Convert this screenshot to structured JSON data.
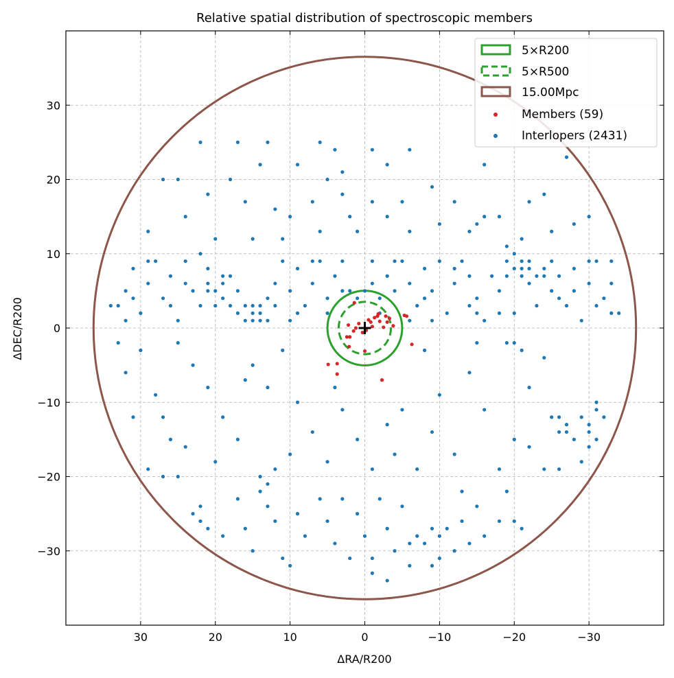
{
  "chart_data": {
    "type": "scatter",
    "title": "Relative spatial distribution of spectroscopic members",
    "xlabel": "ΔRA/R200",
    "ylabel": "ΔDEC/R200",
    "xlim": [
      40,
      -40
    ],
    "ylim": [
      -40,
      40
    ],
    "x_inverted": true,
    "grid": true,
    "x_ticks": [
      30,
      20,
      10,
      0,
      -10,
      -20,
      -30
    ],
    "x_tick_labels": [
      "30",
      "20",
      "10",
      "0",
      "−10",
      "−20",
      "−30"
    ],
    "y_ticks": [
      30,
      20,
      10,
      0,
      -10,
      -20,
      -30
    ],
    "y_tick_labels": [
      "30",
      "20",
      "10",
      "0",
      "−10",
      "−20",
      "−30"
    ],
    "legend_position": "top-right",
    "center_marker": "plus",
    "circles": [
      {
        "name": "5×R200",
        "radius": 5.0,
        "style": "solid",
        "color": "#2ca02c"
      },
      {
        "name": "5×R500",
        "radius": 3.5,
        "style": "dashed",
        "color": "#2ca02c"
      },
      {
        "name": "15.00Mpc",
        "radius": 36.3,
        "style": "solid",
        "color": "#8c564b"
      }
    ],
    "series": [
      {
        "name": "Members (59)",
        "color": "#d62728",
        "points": [
          [
            1.4,
            3.4
          ],
          [
            -1.7,
            1.6
          ],
          [
            -2.8,
            1.6
          ],
          [
            -5.6,
            1.6
          ],
          [
            -5.3,
            1.7
          ],
          [
            -0.8,
            0.8
          ],
          [
            1.2,
            0
          ],
          [
            2.2,
            0.4
          ],
          [
            0.3,
            -0.6
          ],
          [
            -2.5,
            0.1
          ],
          [
            -3.8,
            0.3
          ],
          [
            2.4,
            -1.2
          ],
          [
            2.0,
            -1.2
          ],
          [
            2.1,
            -2.5
          ],
          [
            0,
            -3.1
          ],
          [
            -6.3,
            -2.2
          ],
          [
            4.9,
            -4.9
          ],
          [
            3.7,
            -4.8
          ],
          [
            3.7,
            -6.2
          ],
          [
            -2.3,
            -7.0
          ],
          [
            -1.3,
            1.4
          ],
          [
            -3.3,
            1.3
          ],
          [
            -0.5,
            1.1
          ],
          [
            -2.0,
            0.9
          ],
          [
            -1.0,
            0.2
          ],
          [
            0.8,
            0.6
          ],
          [
            -0.2,
            -0.3
          ],
          [
            1.5,
            -0.4
          ],
          [
            -3.0,
            0.8
          ],
          [
            -1.8,
            1.9
          ]
        ]
      },
      {
        "name": "Interlopers (2431)",
        "color": "#1f77b4",
        "points": [
          [
            33,
            3
          ],
          [
            32,
            5
          ],
          [
            31,
            8
          ],
          [
            30,
            2
          ],
          [
            29,
            6
          ],
          [
            28,
            9
          ],
          [
            27,
            4
          ],
          [
            26,
            7
          ],
          [
            25,
            1
          ],
          [
            24,
            9
          ],
          [
            23,
            5
          ],
          [
            22,
            3
          ],
          [
            21,
            8
          ],
          [
            20,
            5
          ],
          [
            19,
            6
          ],
          [
            19,
            4
          ],
          [
            20,
            3
          ],
          [
            21,
            5
          ],
          [
            18,
            7
          ],
          [
            17,
            2
          ],
          [
            16,
            1
          ],
          [
            15,
            2
          ],
          [
            15,
            3
          ],
          [
            14,
            1
          ],
          [
            14,
            3
          ],
          [
            13,
            4
          ],
          [
            12,
            6
          ],
          [
            11,
            9
          ],
          [
            10,
            5
          ],
          [
            9,
            8
          ],
          [
            8,
            3
          ],
          [
            7,
            6
          ],
          [
            6,
            9
          ],
          [
            5,
            4
          ],
          [
            4,
            7
          ],
          [
            3,
            5
          ],
          [
            2,
            5
          ],
          [
            1,
            4
          ],
          [
            0,
            5
          ],
          [
            -1,
            6
          ],
          [
            -2,
            4
          ],
          [
            -3,
            7
          ],
          [
            -4,
            5
          ],
          [
            -5,
            9
          ],
          [
            -6,
            6
          ],
          [
            -7,
            3
          ],
          [
            -8,
            8
          ],
          [
            -9,
            5
          ],
          [
            -10,
            9
          ],
          [
            -11,
            2
          ],
          [
            -12,
            6
          ],
          [
            -13,
            9
          ],
          [
            -14,
            3
          ],
          [
            -15,
            4
          ],
          [
            -16,
            1
          ],
          [
            -17,
            7
          ],
          [
            -18,
            5
          ],
          [
            -19,
            9
          ],
          [
            -20,
            8
          ],
          [
            -21,
            8
          ],
          [
            -21,
            7
          ],
          [
            -22,
            9
          ],
          [
            -22,
            6
          ],
          [
            -23,
            7
          ],
          [
            -24,
            8
          ],
          [
            -25,
            5
          ],
          [
            -26,
            7
          ],
          [
            -27,
            3
          ],
          [
            -28,
            8
          ],
          [
            -29,
            1
          ],
          [
            -30,
            6
          ],
          [
            -31,
            9
          ],
          [
            -32,
            4
          ],
          [
            -33,
            2
          ],
          [
            32,
            1
          ],
          [
            34,
            3
          ],
          [
            31,
            4
          ],
          [
            29,
            9
          ],
          [
            26,
            3
          ],
          [
            24,
            6
          ],
          [
            22,
            10
          ],
          [
            17,
            5
          ],
          [
            16,
            3
          ],
          [
            13,
            1
          ],
          [
            12,
            3
          ],
          [
            10,
            1
          ],
          [
            9,
            2
          ],
          [
            7,
            9
          ],
          [
            5,
            2
          ],
          [
            3,
            9
          ],
          [
            -1,
            9
          ],
          [
            -2,
            2
          ],
          [
            -4,
            9
          ],
          [
            -6,
            1
          ],
          [
            -8,
            4
          ],
          [
            -9,
            1
          ],
          [
            -12,
            8
          ],
          [
            -14,
            7
          ],
          [
            -15,
            2
          ],
          [
            -18,
            2
          ],
          [
            -20,
            2
          ],
          [
            -20,
            10
          ],
          [
            -23,
            3
          ],
          [
            -25,
            9
          ],
          [
            -26,
            4
          ],
          [
            -28,
            5
          ],
          [
            -30,
            9
          ],
          [
            -31,
            3
          ],
          [
            -33,
            6
          ],
          [
            -34,
            2
          ],
          [
            19,
            7
          ],
          [
            21,
            6
          ],
          [
            18,
            3
          ],
          [
            14,
            2
          ],
          [
            15,
            1
          ],
          [
            -21,
            9
          ],
          [
            -22,
            8
          ],
          [
            -19,
            7
          ],
          [
            -24,
            7
          ],
          [
            22,
            25
          ],
          [
            17,
            25
          ],
          [
            13,
            25
          ],
          [
            6,
            25
          ],
          [
            4,
            24
          ],
          [
            -1,
            24
          ],
          [
            -6,
            24
          ],
          [
            -16,
            22
          ],
          [
            -27,
            23
          ],
          [
            27,
            20
          ],
          [
            25,
            20
          ],
          [
            21,
            18
          ],
          [
            18,
            20
          ],
          [
            16,
            17
          ],
          [
            14,
            22
          ],
          [
            12,
            16
          ],
          [
            10,
            15
          ],
          [
            7,
            17
          ],
          [
            5,
            20
          ],
          [
            3,
            18
          ],
          [
            1,
            13
          ],
          [
            -1,
            17
          ],
          [
            -3,
            15
          ],
          [
            -6,
            13
          ],
          [
            -9,
            19
          ],
          [
            -12,
            17
          ],
          [
            -14,
            13
          ],
          [
            -16,
            15
          ],
          [
            -19,
            11
          ],
          [
            -22,
            17
          ],
          [
            -25,
            13
          ],
          [
            -28,
            14
          ],
          [
            -30,
            15
          ],
          [
            -33,
            9
          ],
          [
            29,
            13
          ],
          [
            24,
            15
          ],
          [
            20,
            12
          ],
          [
            15,
            12
          ],
          [
            11,
            12
          ],
          [
            6,
            13
          ],
          [
            2,
            15
          ],
          [
            -5,
            17
          ],
          [
            -10,
            14
          ],
          [
            -15,
            14
          ],
          [
            -18,
            15
          ],
          [
            -21,
            12
          ],
          [
            -24,
            18
          ],
          [
            3,
            21
          ],
          [
            9,
            22
          ],
          [
            -3,
            22
          ],
          [
            33,
            -2
          ],
          [
            32,
            -6
          ],
          [
            30,
            -3
          ],
          [
            28,
            -9
          ],
          [
            27,
            -12
          ],
          [
            25,
            -2
          ],
          [
            23,
            -5
          ],
          [
            21,
            -8
          ],
          [
            19,
            -12
          ],
          [
            17,
            -15
          ],
          [
            15,
            -5
          ],
          [
            13,
            -8
          ],
          [
            11,
            -3
          ],
          [
            9,
            -10
          ],
          [
            7,
            -14
          ],
          [
            5,
            -18
          ],
          [
            3,
            -11
          ],
          [
            1,
            -15
          ],
          [
            -1,
            -19
          ],
          [
            -3,
            -13
          ],
          [
            -5,
            -11
          ],
          [
            -8,
            -3
          ],
          [
            -10,
            -9
          ],
          [
            -12,
            -17
          ],
          [
            -14,
            -6
          ],
          [
            -16,
            -11
          ],
          [
            -18,
            -19
          ],
          [
            -20,
            -15
          ],
          [
            -22,
            -8
          ],
          [
            -24,
            -4
          ],
          [
            -25,
            -12
          ],
          [
            -26,
            -12
          ],
          [
            -27,
            -13
          ],
          [
            -27,
            -14
          ],
          [
            -28,
            -15
          ],
          [
            -26,
            -14
          ],
          [
            -29,
            -12
          ],
          [
            -30,
            -13
          ],
          [
            -30,
            -14
          ],
          [
            -31,
            -15
          ],
          [
            -31,
            -11
          ],
          [
            -32,
            -12
          ],
          [
            -30,
            -16
          ],
          [
            -29,
            -18
          ],
          [
            -31,
            -10
          ],
          [
            -24,
            -19
          ],
          [
            -26,
            -19
          ],
          [
            -22,
            -16
          ],
          [
            29,
            -19
          ],
          [
            31,
            -12
          ],
          [
            26,
            -15
          ],
          [
            24,
            -16
          ],
          [
            20,
            -18
          ],
          [
            12,
            -19
          ],
          [
            -7,
            -19
          ],
          [
            -15,
            -2
          ],
          [
            -19,
            -2
          ],
          [
            -21,
            -3
          ],
          [
            -20,
            -2
          ],
          [
            16,
            -7
          ],
          [
            10,
            -17
          ],
          [
            4,
            -8
          ],
          [
            -4,
            -17
          ],
          [
            -9,
            -14
          ],
          [
            27,
            -20
          ],
          [
            25,
            -20
          ],
          [
            23,
            -25
          ],
          [
            22,
            -24
          ],
          [
            22,
            -26
          ],
          [
            21,
            -27
          ],
          [
            19,
            -28
          ],
          [
            17,
            -23
          ],
          [
            16,
            -27
          ],
          [
            15,
            -30
          ],
          [
            14,
            -20
          ],
          [
            14,
            -22
          ],
          [
            13,
            -21
          ],
          [
            13,
            -24
          ],
          [
            12,
            -26
          ],
          [
            11,
            -31
          ],
          [
            10,
            -32
          ],
          [
            9,
            -25
          ],
          [
            8,
            -28
          ],
          [
            6,
            -23
          ],
          [
            5,
            -26
          ],
          [
            3,
            -23
          ],
          [
            1,
            -25
          ],
          [
            0,
            -28
          ],
          [
            -1,
            -31
          ],
          [
            -2,
            -23
          ],
          [
            -3,
            -27
          ],
          [
            -4,
            -30
          ],
          [
            -5,
            -24
          ],
          [
            -6,
            -32
          ],
          [
            -7,
            -28
          ],
          [
            -8,
            -29
          ],
          [
            -9,
            -27
          ],
          [
            -10,
            -28
          ],
          [
            -10,
            -31
          ],
          [
            -11,
            -27
          ],
          [
            -12,
            -30
          ],
          [
            -13,
            -26
          ],
          [
            -14,
            -29
          ],
          [
            -15,
            -24
          ],
          [
            -16,
            -28
          ],
          [
            -18,
            -26
          ],
          [
            -19,
            -22
          ],
          [
            -21,
            -27
          ],
          [
            -20,
            -26
          ],
          [
            -3,
            -34
          ],
          [
            2,
            -31
          ],
          [
            -1,
            -33
          ],
          [
            -6,
            -29
          ],
          [
            -9,
            -32
          ],
          [
            4,
            -29
          ],
          [
            -13,
            -22
          ]
        ]
      }
    ],
    "legend": [
      "5×R200",
      "5×R500",
      "15.00Mpc",
      "Members (59)",
      "Interlopers (2431)"
    ]
  }
}
